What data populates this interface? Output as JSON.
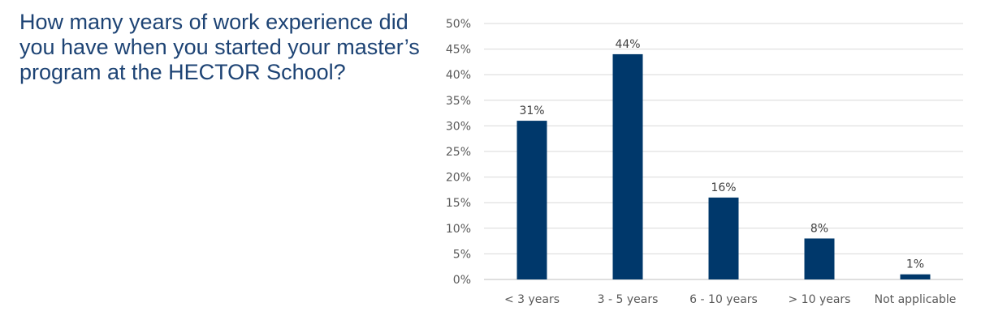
{
  "chart_data": {
    "type": "bar",
    "title": "How many years of work experience did you have when you started your master’s program at the HECTOR School?",
    "categories": [
      "< 3 years",
      "3 - 5 years",
      "6 - 10 years",
      "> 10 years",
      "Not applicable"
    ],
    "values": [
      31,
      44,
      16,
      8,
      1
    ],
    "data_labels": [
      "31%",
      "44%",
      "16%",
      "8%",
      "1%"
    ],
    "xlabel": "",
    "ylabel": "",
    "ylim": [
      0,
      50
    ],
    "yticks": [
      "0%",
      "5%",
      "10%",
      "15%",
      "20%",
      "25%",
      "30%",
      "35%",
      "40%",
      "45%",
      "50%"
    ],
    "grid": true,
    "bar_color": "#00386b"
  }
}
